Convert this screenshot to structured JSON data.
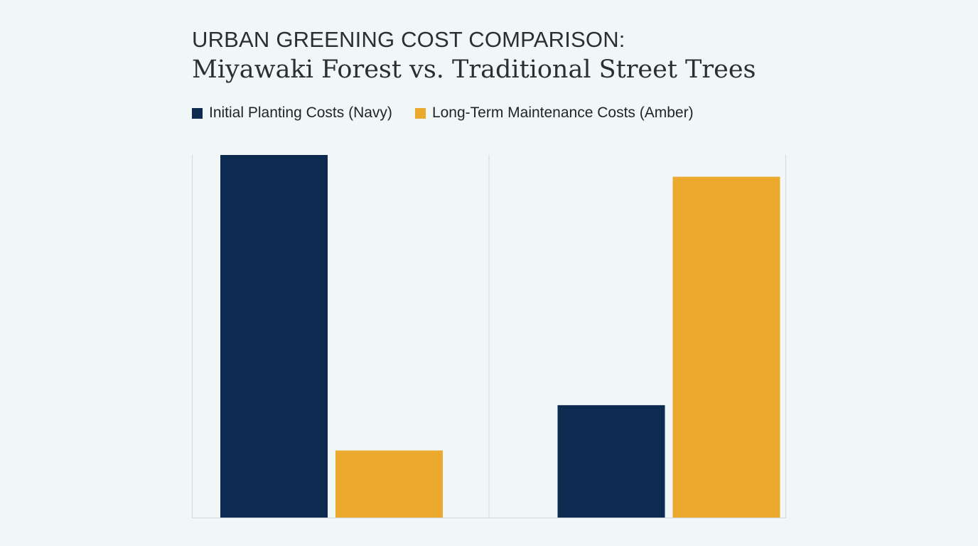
{
  "chart_data": {
    "type": "bar",
    "title_line1": "URBAN GREENING COST COMPARISON:",
    "title_line2": "Miyawaki Forest vs. Traditional Street Trees",
    "categories": [
      "",
      ""
    ],
    "series": [
      {
        "name": "Initial Planting Costs (Navy)",
        "color": "#0d2b50",
        "values": [
          100,
          31
        ]
      },
      {
        "name": "Long-Term Maintenance Costs (Amber)",
        "color": "#eba92e",
        "values": [
          18.5,
          94
        ]
      }
    ],
    "ylim": [
      0,
      100
    ],
    "grid": false,
    "legend_position": "top-left",
    "xlabel": "",
    "ylabel": ""
  }
}
